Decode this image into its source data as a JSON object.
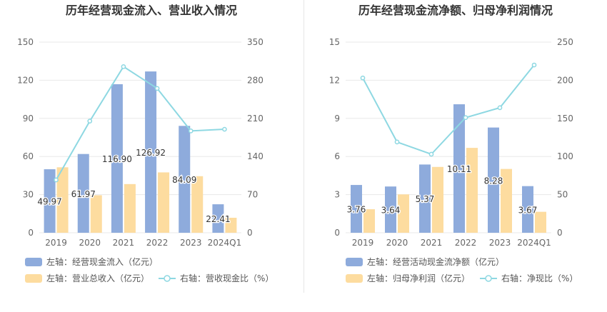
{
  "chart_data": [
    {
      "type": "bar",
      "title": "历年经营现金流入、营业收入情况",
      "categories": [
        "2019",
        "2020",
        "2021",
        "2022",
        "2023",
        "2024Q1"
      ],
      "left_axis": {
        "ticks": [
          "0",
          "30",
          "60",
          "90",
          "120",
          "150"
        ],
        "ylim": [
          0,
          150
        ]
      },
      "right_axis": {
        "ticks": [
          "0",
          "70",
          "140",
          "210",
          "280",
          "350"
        ],
        "ylim": [
          0,
          350
        ]
      },
      "series": [
        {
          "name": "左轴：经营现金流入（亿元）",
          "type": "bar",
          "axis": "left",
          "color": "#8eabdc",
          "values": [
            49.97,
            61.97,
            116.9,
            126.92,
            84.09,
            22.41
          ],
          "labels": [
            "49.97",
            "61.97",
            "116.90",
            "126.92",
            "84.09",
            "22.41"
          ]
        },
        {
          "name": "左轴：营业总收入（亿元）",
          "type": "bar",
          "axis": "left",
          "color": "#fddc9f",
          "values": [
            51.5,
            29.5,
            38.3,
            47.5,
            44.5,
            11.8
          ]
        },
        {
          "name": "右轴：营收现金比（%）",
          "type": "line",
          "axis": "right",
          "color": "#8ed8e2",
          "values": [
            97,
            205,
            305,
            265,
            187,
            190
          ]
        }
      ]
    },
    {
      "type": "bar",
      "title": "历年经营现金流净额、归母净利润情况",
      "categories": [
        "2019",
        "2020",
        "2021",
        "2022",
        "2023",
        "2024Q1"
      ],
      "left_axis": {
        "ticks": [
          "0",
          "3",
          "6",
          "9",
          "12",
          "15"
        ],
        "ylim": [
          0,
          15
        ]
      },
      "right_axis": {
        "ticks": [
          "0",
          "50",
          "100",
          "150",
          "200",
          "250"
        ],
        "ylim": [
          0,
          250
        ]
      },
      "series": [
        {
          "name": "左轴：经营活动现金流净额（亿元）",
          "type": "bar",
          "axis": "left",
          "color": "#8eabdc",
          "values": [
            3.76,
            3.64,
            5.37,
            10.11,
            8.28,
            3.67
          ],
          "labels": [
            "3.76",
            "3.64",
            "5.37",
            "10.11",
            "8.28",
            "3.67"
          ]
        },
        {
          "name": "左轴：归母净利润（亿元）",
          "type": "bar",
          "axis": "left",
          "color": "#fddc9f",
          "values": [
            1.85,
            3.02,
            5.18,
            6.68,
            5.02,
            1.65
          ]
        },
        {
          "name": "右轴：净现比（%）",
          "type": "line",
          "axis": "right",
          "color": "#8ed8e2",
          "values": [
            203,
            119,
            103,
            151,
            164,
            220
          ]
        }
      ]
    }
  ]
}
